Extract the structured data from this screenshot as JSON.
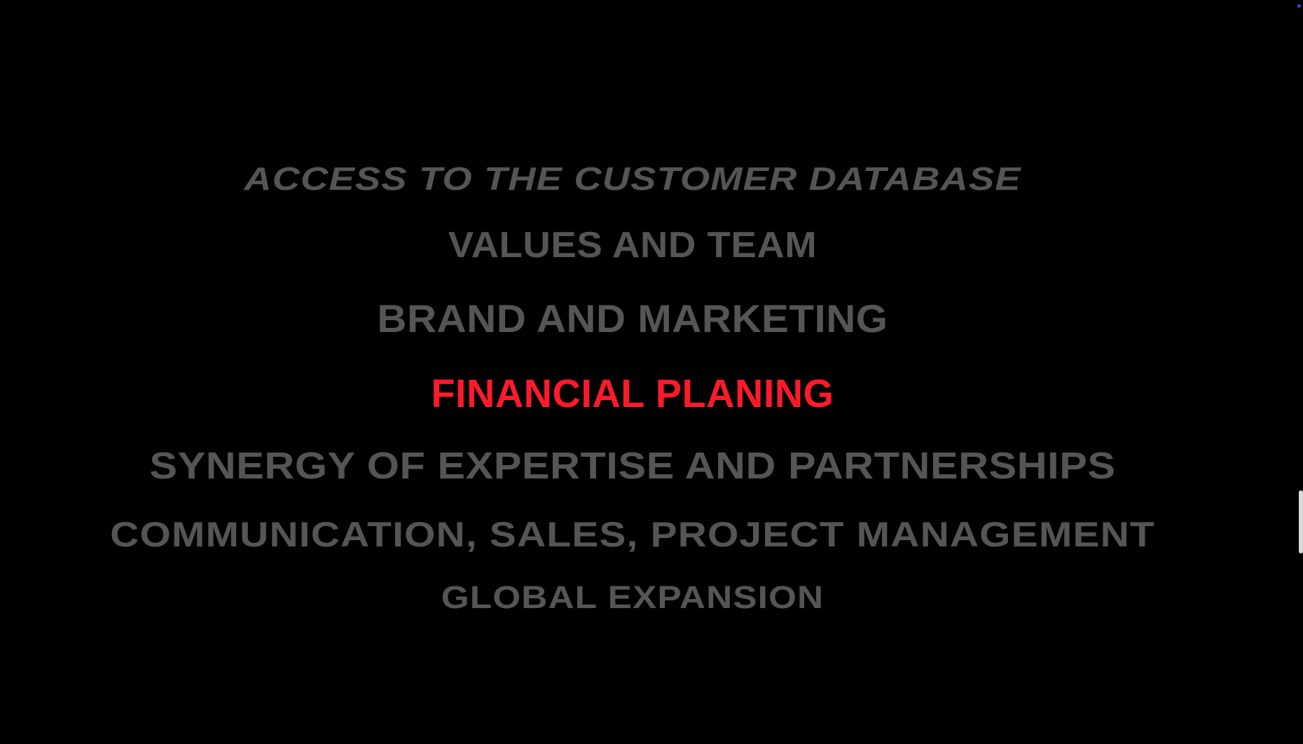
{
  "menu": {
    "items": [
      {
        "label": "ACCESS TO THE CUSTOMER DATABASE",
        "active": false
      },
      {
        "label": "VALUES AND TEAM",
        "active": false
      },
      {
        "label": "BRAND AND MARKETING",
        "active": false
      },
      {
        "label": "FINANCIAL PLANING",
        "active": true
      },
      {
        "label": "SYNERGY OF EXPERTISE AND PARTNERSHIPS",
        "active": false
      },
      {
        "label": "COMMUNICATION, SALES, PROJECT MANAGEMENT",
        "active": false
      },
      {
        "label": "GLOBAL EXPANSION",
        "active": false
      }
    ]
  },
  "colors": {
    "background": "#000000",
    "muted_text": "#555555",
    "active_text": "#ff1a2b",
    "scrollbar_thumb": "#d9d9d9",
    "indicator_dot": "#3a3aff"
  },
  "scroll": {
    "position_fraction": 0.72
  }
}
